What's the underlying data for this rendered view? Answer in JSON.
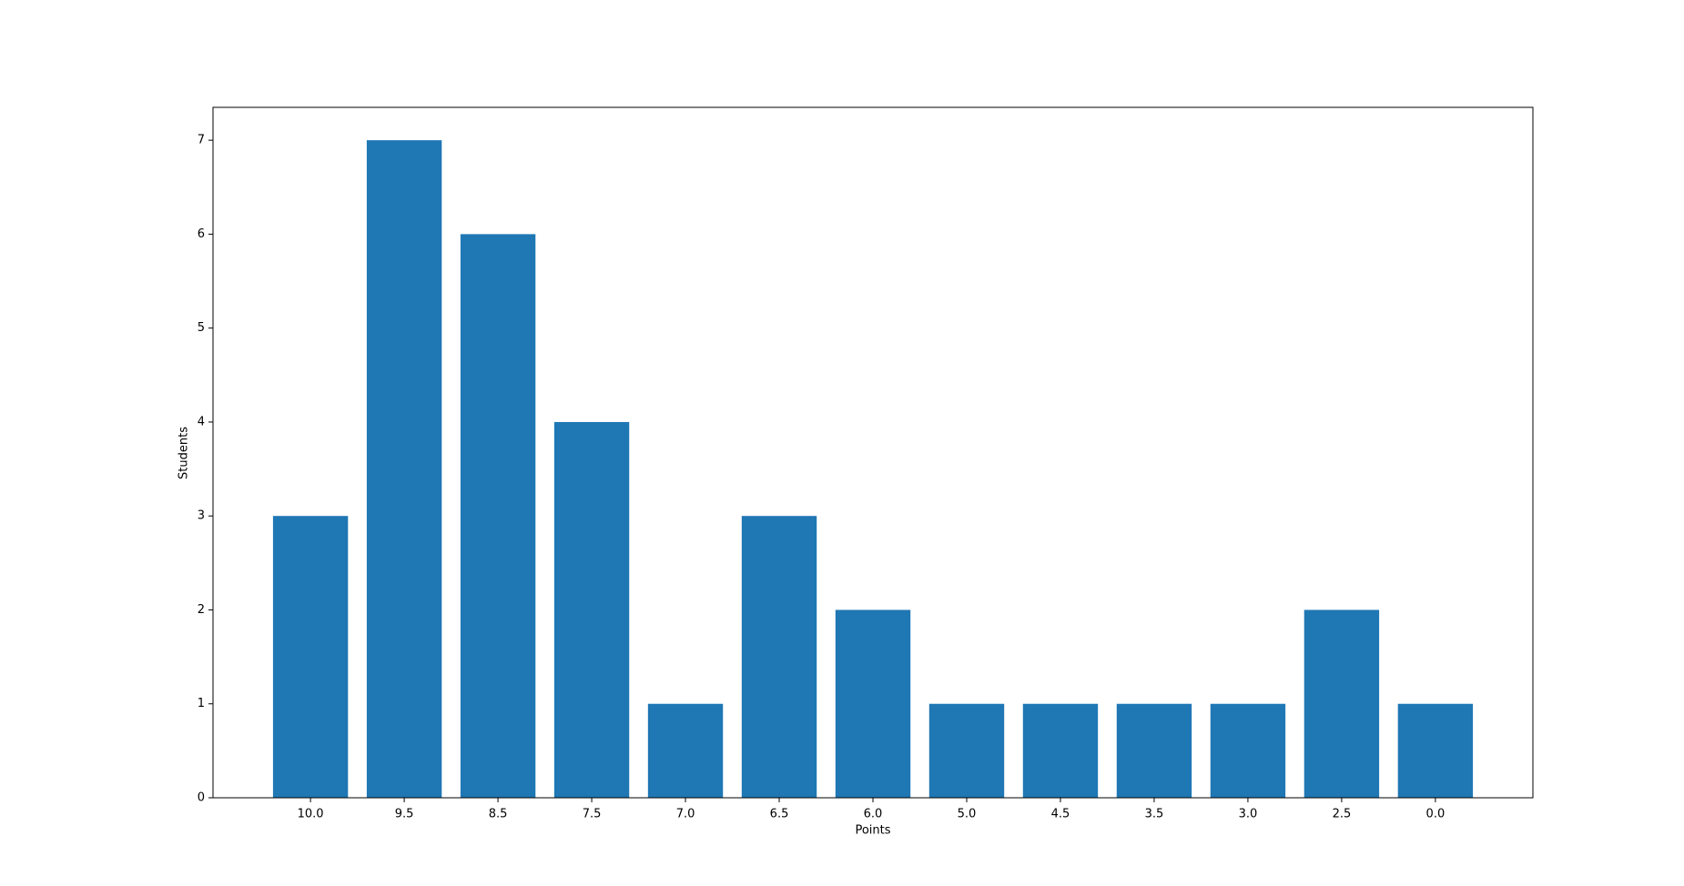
{
  "chart_data": {
    "type": "bar",
    "x_label": "Points",
    "y_label": "Students",
    "categories": [
      "10.0",
      "9.5",
      "8.5",
      "7.5",
      "7.0",
      "6.5",
      "6.0",
      "5.0",
      "4.5",
      "3.5",
      "3.0",
      "2.5",
      "0.0"
    ],
    "values": [
      3,
      7,
      6,
      4,
      1,
      3,
      2,
      1,
      1,
      1,
      1,
      2,
      1
    ],
    "color": "#1f77b4",
    "ylim": [
      0,
      7.35
    ],
    "yticks": [
      0,
      1,
      2,
      3,
      4,
      5,
      6,
      7
    ],
    "grid": false
  }
}
